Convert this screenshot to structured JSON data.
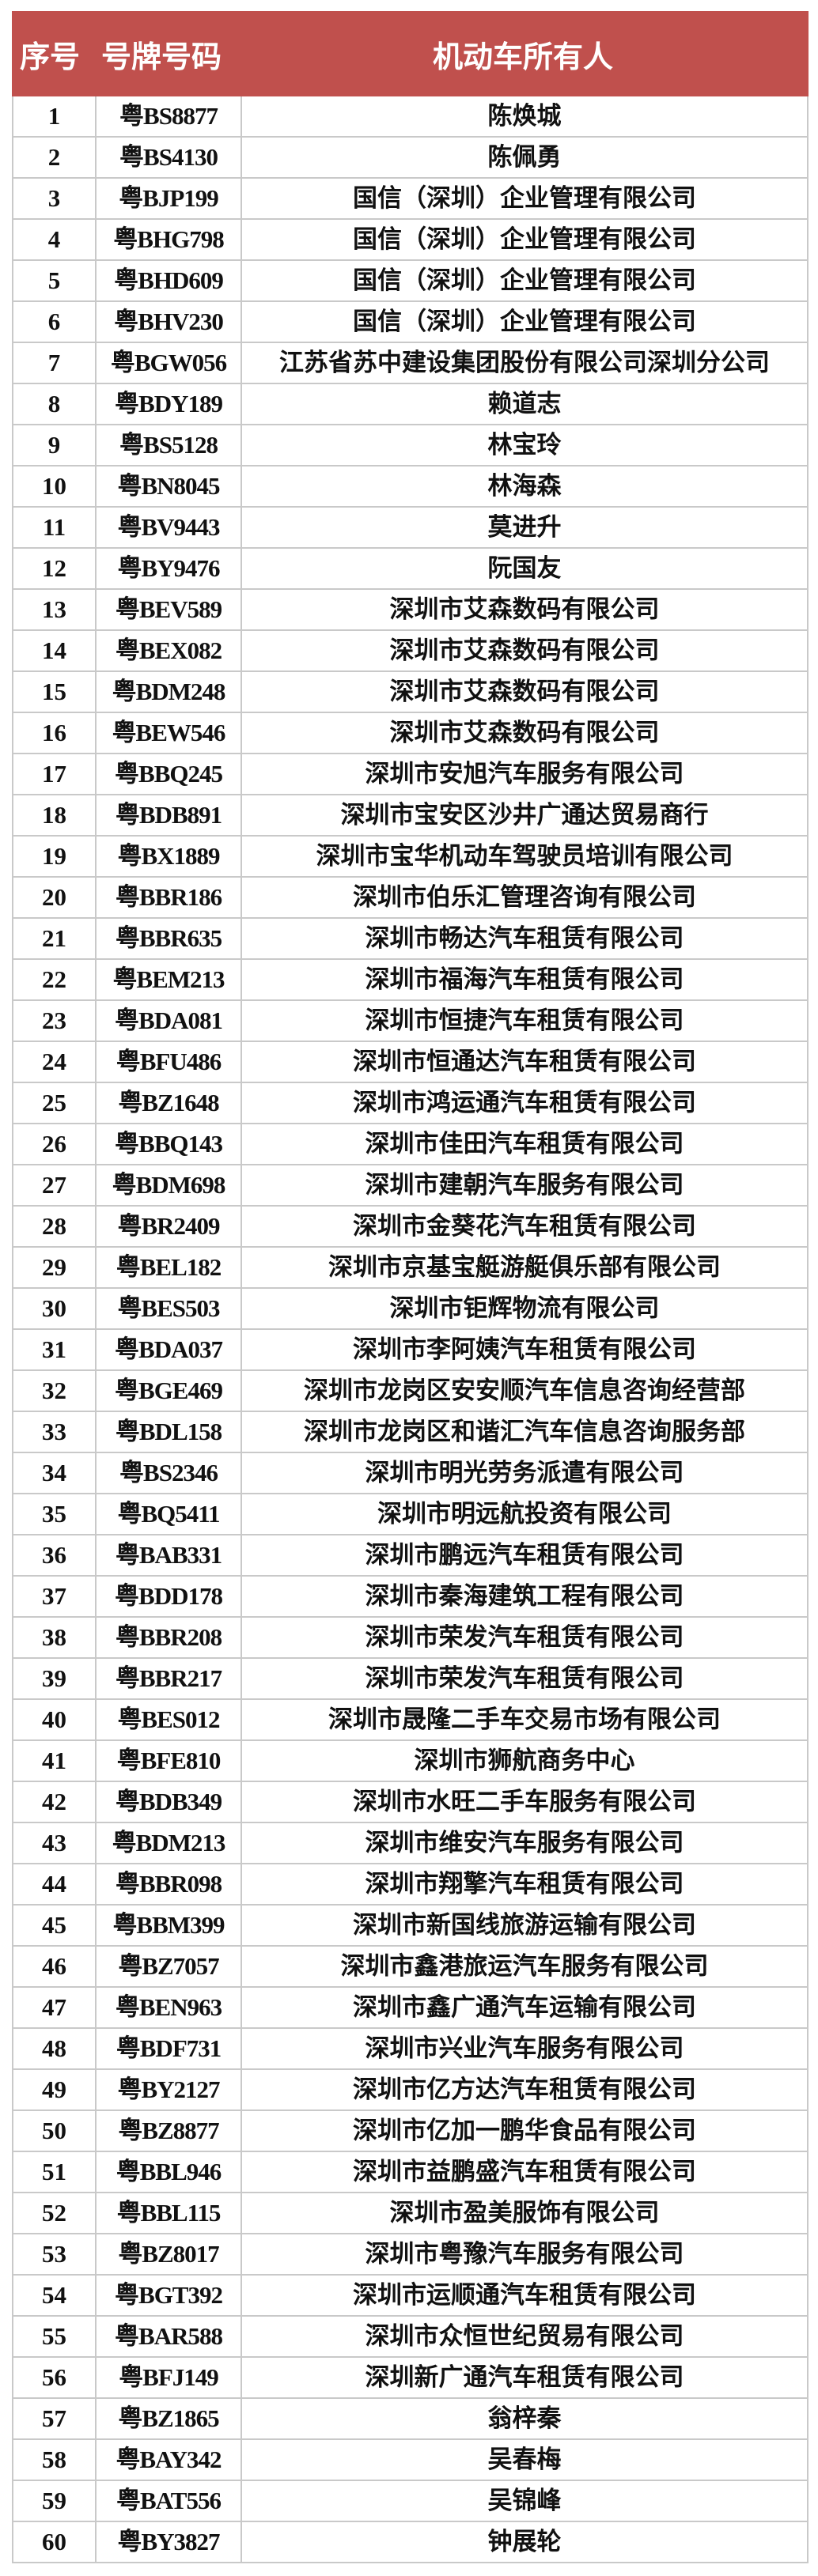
{
  "table": {
    "header_color": "#c0504d",
    "headers": [
      "序号",
      "号牌号码",
      "机动车所有人"
    ],
    "rows": [
      [
        "1",
        "粤BS8877",
        "陈焕城"
      ],
      [
        "2",
        "粤BS4130",
        "陈佩勇"
      ],
      [
        "3",
        "粤BJP199",
        "国信（深圳）企业管理有限公司"
      ],
      [
        "4",
        "粤BHG798",
        "国信（深圳）企业管理有限公司"
      ],
      [
        "5",
        "粤BHD609",
        "国信（深圳）企业管理有限公司"
      ],
      [
        "6",
        "粤BHV230",
        "国信（深圳）企业管理有限公司"
      ],
      [
        "7",
        "粤BGW056",
        "江苏省苏中建设集团股份有限公司深圳分公司"
      ],
      [
        "8",
        "粤BDY189",
        "赖道志"
      ],
      [
        "9",
        "粤BS5128",
        "林宝玲"
      ],
      [
        "10",
        "粤BN8045",
        "林海森"
      ],
      [
        "11",
        "粤BV9443",
        "莫进升"
      ],
      [
        "12",
        "粤BY9476",
        "阮国友"
      ],
      [
        "13",
        "粤BEV589",
        "深圳市艾森数码有限公司"
      ],
      [
        "14",
        "粤BEX082",
        "深圳市艾森数码有限公司"
      ],
      [
        "15",
        "粤BDM248",
        "深圳市艾森数码有限公司"
      ],
      [
        "16",
        "粤BEW546",
        "深圳市艾森数码有限公司"
      ],
      [
        "17",
        "粤BBQ245",
        "深圳市安旭汽车服务有限公司"
      ],
      [
        "18",
        "粤BDB891",
        "深圳市宝安区沙井广通达贸易商行"
      ],
      [
        "19",
        "粤BX1889",
        "深圳市宝华机动车驾驶员培训有限公司"
      ],
      [
        "20",
        "粤BBR186",
        "深圳市伯乐汇管理咨询有限公司"
      ],
      [
        "21",
        "粤BBR635",
        "深圳市畅达汽车租赁有限公司"
      ],
      [
        "22",
        "粤BEM213",
        "深圳市福海汽车租赁有限公司"
      ],
      [
        "23",
        "粤BDA081",
        "深圳市恒捷汽车租赁有限公司"
      ],
      [
        "24",
        "粤BFU486",
        "深圳市恒通达汽车租赁有限公司"
      ],
      [
        "25",
        "粤BZ1648",
        "深圳市鸿运通汽车租赁有限公司"
      ],
      [
        "26",
        "粤BBQ143",
        "深圳市佳田汽车租赁有限公司"
      ],
      [
        "27",
        "粤BDM698",
        "深圳市建朝汽车服务有限公司"
      ],
      [
        "28",
        "粤BR2409",
        "深圳市金葵花汽车租赁有限公司"
      ],
      [
        "29",
        "粤BEL182",
        "深圳市京基宝艇游艇俱乐部有限公司"
      ],
      [
        "30",
        "粤BES503",
        "深圳市钜辉物流有限公司"
      ],
      [
        "31",
        "粤BDA037",
        "深圳市李阿姨汽车租赁有限公司"
      ],
      [
        "32",
        "粤BGE469",
        "深圳市龙岗区安安顺汽车信息咨询经营部"
      ],
      [
        "33",
        "粤BDL158",
        "深圳市龙岗区和谐汇汽车信息咨询服务部"
      ],
      [
        "34",
        "粤BS2346",
        "深圳市明光劳务派遣有限公司"
      ],
      [
        "35",
        "粤BQ5411",
        "深圳市明远航投资有限公司"
      ],
      [
        "36",
        "粤BAB331",
        "深圳市鹏远汽车租赁有限公司"
      ],
      [
        "37",
        "粤BDD178",
        "深圳市秦海建筑工程有限公司"
      ],
      [
        "38",
        "粤BBR208",
        "深圳市荣发汽车租赁有限公司"
      ],
      [
        "39",
        "粤BBR217",
        "深圳市荣发汽车租赁有限公司"
      ],
      [
        "40",
        "粤BES012",
        "深圳市晟隆二手车交易市场有限公司"
      ],
      [
        "41",
        "粤BFE810",
        "深圳市狮航商务中心"
      ],
      [
        "42",
        "粤BDB349",
        "深圳市水旺二手车服务有限公司"
      ],
      [
        "43",
        "粤BDM213",
        "深圳市维安汽车服务有限公司"
      ],
      [
        "44",
        "粤BBR098",
        "深圳市翔擎汽车租赁有限公司"
      ],
      [
        "45",
        "粤BBM399",
        "深圳市新国线旅游运输有限公司"
      ],
      [
        "46",
        "粤BZ7057",
        "深圳市鑫港旅运汽车服务有限公司"
      ],
      [
        "47",
        "粤BEN963",
        "深圳市鑫广通汽车运输有限公司"
      ],
      [
        "48",
        "粤BDF731",
        "深圳市兴业汽车服务有限公司"
      ],
      [
        "49",
        "粤BY2127",
        "深圳市亿方达汽车租赁有限公司"
      ],
      [
        "50",
        "粤BZ8877",
        "深圳市亿加一鹏华食品有限公司"
      ],
      [
        "51",
        "粤BBL946",
        "深圳市益鹏盛汽车租赁有限公司"
      ],
      [
        "52",
        "粤BBL115",
        "深圳市盈美服饰有限公司"
      ],
      [
        "53",
        "粤BZ8017",
        "深圳市粤豫汽车服务有限公司"
      ],
      [
        "54",
        "粤BGT392",
        "深圳市运顺通汽车租赁有限公司"
      ],
      [
        "55",
        "粤BAR588",
        "深圳市众恒世纪贸易有限公司"
      ],
      [
        "56",
        "粤BFJ149",
        "深圳新广通汽车租赁有限公司"
      ],
      [
        "57",
        "粤BZ1865",
        "翁梓秦"
      ],
      [
        "58",
        "粤BAY342",
        "吴春梅"
      ],
      [
        "59",
        "粤BAT556",
        "吴锦峰"
      ],
      [
        "60",
        "粤BY3827",
        "钟展轮"
      ]
    ]
  }
}
